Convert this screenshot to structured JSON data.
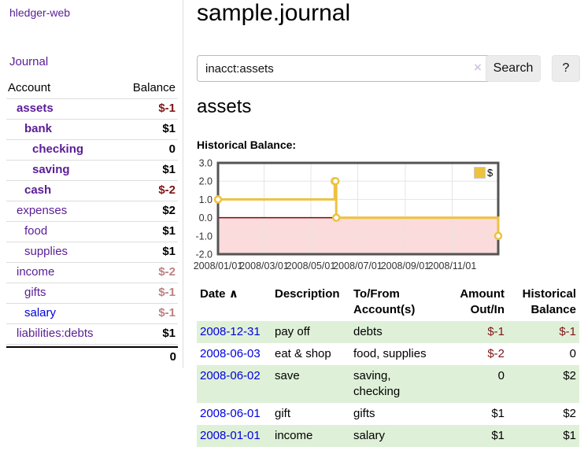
{
  "app": {
    "title": "hledger-web"
  },
  "nav": {
    "journal": "Journal"
  },
  "sidebar": {
    "header": {
      "account": "Account",
      "balance": "Balance"
    },
    "accounts": [
      {
        "name": "assets",
        "balance": "$-1"
      },
      {
        "name": "bank",
        "balance": "$1"
      },
      {
        "name": "checking",
        "balance": "0"
      },
      {
        "name": "saving",
        "balance": "$1"
      },
      {
        "name": "cash",
        "balance": "$-2"
      },
      {
        "name": "expenses",
        "balance": "$2"
      },
      {
        "name": "food",
        "balance": "$1"
      },
      {
        "name": "supplies",
        "balance": "$1"
      },
      {
        "name": "income",
        "balance": "$-2"
      },
      {
        "name": "gifts",
        "balance": "$-1"
      },
      {
        "name": "salary",
        "balance": "$-1"
      },
      {
        "name": "liabilities:debts",
        "balance": "$1"
      }
    ],
    "total": "0"
  },
  "header": {
    "title": "sample.journal"
  },
  "search": {
    "value": "inacct:assets",
    "clear_icon": "×",
    "button": "Search",
    "help_button": "?"
  },
  "main": {
    "account_title": "assets",
    "chart_label": "Historical Balance:"
  },
  "chart_data": {
    "type": "line",
    "title": "Historical Balance:",
    "step": true,
    "x_range": [
      "2008-01-01",
      "2008-12-31"
    ],
    "y_range": [
      -2,
      3
    ],
    "yticks": [
      {
        "label": "3.0",
        "value": 3
      },
      {
        "label": "2.0",
        "value": 2
      },
      {
        "label": "1.0",
        "value": 1
      },
      {
        "label": "0.0",
        "value": 0
      },
      {
        "label": "-1.0",
        "value": -1
      },
      {
        "label": "-2.0",
        "value": -2
      }
    ],
    "xticks": [
      {
        "label": "2008/01/01",
        "date": "2008-01-01"
      },
      {
        "label": "2008/03/01",
        "date": "2008-03-01"
      },
      {
        "label": "2008/05/01",
        "date": "2008-05-01"
      },
      {
        "label": "2008/07/01",
        "date": "2008-07-01"
      },
      {
        "label": "2008/09/01",
        "date": "2008-09-01"
      },
      {
        "label": "2008/11/01",
        "date": "2008-11-01"
      }
    ],
    "series": [
      {
        "name": "$",
        "color": "#edc240",
        "points": [
          [
            "2008-01-01",
            1
          ],
          [
            "2008-06-01",
            2
          ],
          [
            "2008-06-02",
            2
          ],
          [
            "2008-06-03",
            0
          ],
          [
            "2008-12-31",
            -1
          ]
        ]
      }
    ],
    "legend_position": "top-right",
    "grid": true,
    "grid_color": "#e5e5e5",
    "frame_color": "#545454",
    "zero_line_color": "#8b0000",
    "negative_fill": "#fbdbdb"
  },
  "table": {
    "sort_icon": "∧",
    "headers": [
      "Date",
      "Description",
      "To/From Account(s)",
      "Amount Out/In",
      "Historical Balance"
    ],
    "rows": [
      {
        "date": "2008-12-31",
        "description": "pay off",
        "accounts": "debts",
        "amount": "$-1",
        "balance": "$-1"
      },
      {
        "date": "2008-06-03",
        "description": "eat & shop",
        "accounts": "food, supplies",
        "amount": "$-2",
        "balance": "0"
      },
      {
        "date": "2008-06-02",
        "description": "save",
        "accounts": "saving, checking",
        "amount": "0",
        "balance": "$2"
      },
      {
        "date": "2008-06-01",
        "description": "gift",
        "accounts": "gifts",
        "amount": "$1",
        "balance": "$2"
      },
      {
        "date": "2008-01-01",
        "description": "income",
        "accounts": "salary",
        "amount": "$1",
        "balance": "$1"
      }
    ]
  },
  "colors": {
    "link_purple": "#5a1d96",
    "link_blue": "#0000dd",
    "negative_strong": "#801414",
    "negative_soft": "#bc8282",
    "row_highlight_green": "#dff0d8",
    "chart_line_gold": "#edc240"
  }
}
